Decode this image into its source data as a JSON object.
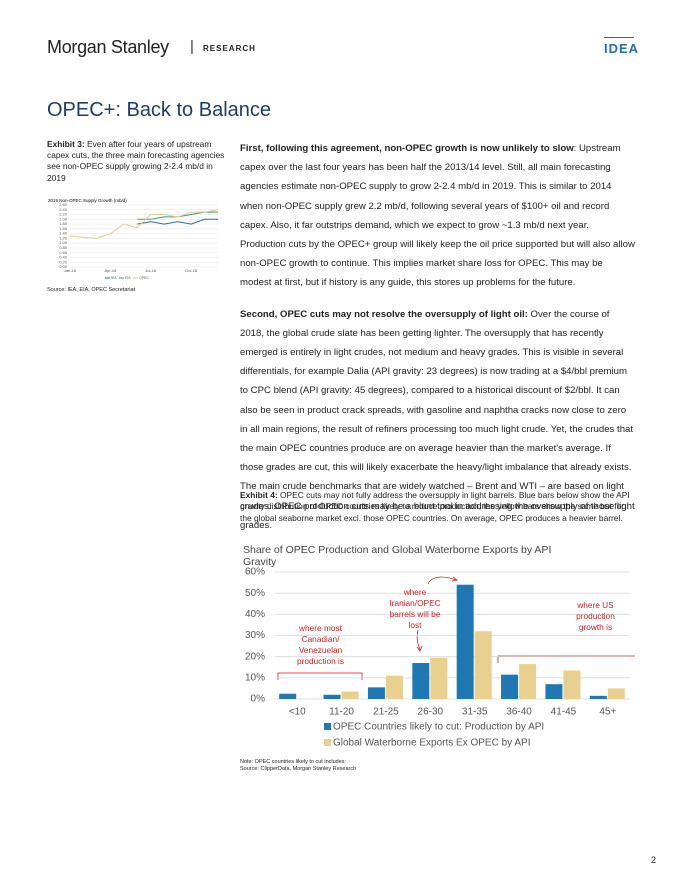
{
  "header": {
    "brand": "Morgan Stanley",
    "section": "RESEARCH",
    "tag": "IDEA"
  },
  "title": "OPEC+: Back to Balance",
  "exhibit3": {
    "label": "Exhibit 3:",
    "caption": "Even after four years of upstream capex cuts, the three main forecasting agencies see non-OPEC supply growing 2-2.4 mb/d in 2019",
    "chart": {
      "type": "line",
      "title": "2019 Non-OPEC Supply Growth (mb/d)",
      "categories": [
        "Jan-18",
        null,
        null,
        "Apr-18",
        null,
        null,
        "Jul-18",
        null,
        null,
        "Oct-18",
        null,
        null
      ],
      "series": [
        {
          "name": "IEA",
          "color": "#1f6fa8",
          "values": [
            null,
            null,
            null,
            null,
            null,
            1.8,
            1.9,
            1.8,
            1.9,
            1.8,
            2.0,
            2.0
          ]
        },
        {
          "name": "EIA",
          "color": "#3f9a78",
          "values": [
            null,
            null,
            null,
            null,
            null,
            2.0,
            2.0,
            2.1,
            2.1,
            2.2,
            2.3,
            2.3
          ]
        },
        {
          "name": "OPEC",
          "color": "#e2cf8f",
          "values": [
            1.3,
            1.25,
            1.2,
            1.4,
            1.8,
            1.65,
            2.2,
            2.2,
            2.1,
            2.3,
            2.3,
            2.4
          ]
        }
      ],
      "ylim": [
        0,
        2.6
      ],
      "yticks": [
        {
          "value": 0,
          "label": "0.00"
        },
        {
          "value": 0.2,
          "label": "0.20"
        },
        {
          "value": 0.4,
          "label": "0.40"
        },
        {
          "value": 0.6,
          "label": "0.60"
        },
        {
          "value": 0.8,
          "label": "0.80"
        },
        {
          "value": 1,
          "label": "1.00"
        },
        {
          "value": 1.2,
          "label": "1.20"
        },
        {
          "value": 1.4,
          "label": "1.40"
        },
        {
          "value": 1.6,
          "label": "1.60"
        },
        {
          "value": 1.8,
          "label": "1.80"
        },
        {
          "value": 2,
          "label": "2.00"
        },
        {
          "value": 2.2,
          "label": "2.20"
        },
        {
          "value": 2.4,
          "label": "2.40"
        },
        {
          "value": 2.6,
          "label": "2.60"
        }
      ],
      "grid": true
    },
    "source": "Source: IEA, EIA, OPEC Secretariat"
  },
  "body": {
    "paragraphs": [
      {
        "lead": "First, following this agreement, non-OPEC growth is now unlikely to slow",
        "text": ": Upstream capex over the last four years has been half the 2013/14 level. Still, all main forecasting agencies estimate non-OPEC supply to grow 2-2.4 mb/d in 2019. This is similar to 2014 when non-OPEC supply grew 2.2 mb/d, following several years of $100+ oil and record capex. Also, it far outstrips demand, which we expect to grow ~1.3 mb/d next year. Production cuts by the OPEC+ group will likely keep the oil price supported but will also allow non-OPEC growth to continue. This implies market share loss for OPEC. This may be modest at first, but if history is any guide, this stores up problems for the future."
      },
      {
        "lead": "Second, OPEC cuts may not resolve the oversupply of light oil:",
        "text": " Over the course of 2018, the global crude slate has been getting lighter. The oversupply that has recently emerged is entirely in light crudes, not medium and heavy grades. This is visible in several differentials, for example Dalia (API gravity: 23 degrees) is now trading at a $4/bbl premium to CPC blend (API gravity: 45 degrees), compared to a historical discount of $2/bbl. It can also be seen in product crack spreads, with gasoline and naphtha cracks now close to zero in all main regions, the result of refiners processing too much light crude. Yet, the crudes that the main OPEC countries produce are on average heavier than the market's average. If those grades are cut, this will likely exacerbate the heavy/light imbalance that already exists. The main crude benchmarks that are widely watched – Brent and WTI – are based on light crudes. OPEC production cuts may be a blunt tool in addressing the oversupply of those light grades."
      }
    ]
  },
  "exhibit4": {
    "label": "Exhibit 4:",
    "caption": "OPEC cuts may not fully address the oversupply in light barrels. Blue bars below show the API gravity distribution of OPEC countries likely to reduce production; the yellow bars show the same but for the global seaborne market excl. those OPEC countries. On average, OPEC produces a heavier barrel.",
    "chart": {
      "type": "bar",
      "title": "Share of OPEC Production and Global Waterborne Exports by API Gravity",
      "categories": [
        "<10",
        "11-20",
        "21-25",
        "26-30",
        "31-35",
        "36-40",
        "41-45",
        "45+"
      ],
      "series": [
        {
          "name": "OPEC Countries likely to cut: Production by API",
          "color": "#1f78b4",
          "values": [
            2.5,
            2,
            5.5,
            17,
            54,
            11.5,
            7,
            1.5
          ]
        },
        {
          "name": "Global Waterborne Exports Ex OPEC by API",
          "color": "#ead08f",
          "values": [
            0,
            3.5,
            11,
            19.5,
            32,
            16.5,
            13.5,
            5
          ]
        }
      ],
      "ylim": [
        0,
        60
      ],
      "yticks": [
        {
          "value": 0,
          "label": "0%"
        },
        {
          "value": 10,
          "label": "10%"
        },
        {
          "value": 20,
          "label": "20%"
        },
        {
          "value": 30,
          "label": "30%"
        },
        {
          "value": 40,
          "label": "40%"
        },
        {
          "value": 50,
          "label": "50%"
        },
        {
          "value": 60,
          "label": "60%"
        }
      ],
      "grid": true,
      "annotations": [
        "where most Canadian/ Venezuelan production is",
        "where Iranian/OPEC barrels will be lost",
        "where US production growth is"
      ]
    },
    "note": "Note: OPEC countries likely to cut includes:",
    "source": "Source: ClipperData, Morgan Stanley Research"
  },
  "page_number": "2"
}
